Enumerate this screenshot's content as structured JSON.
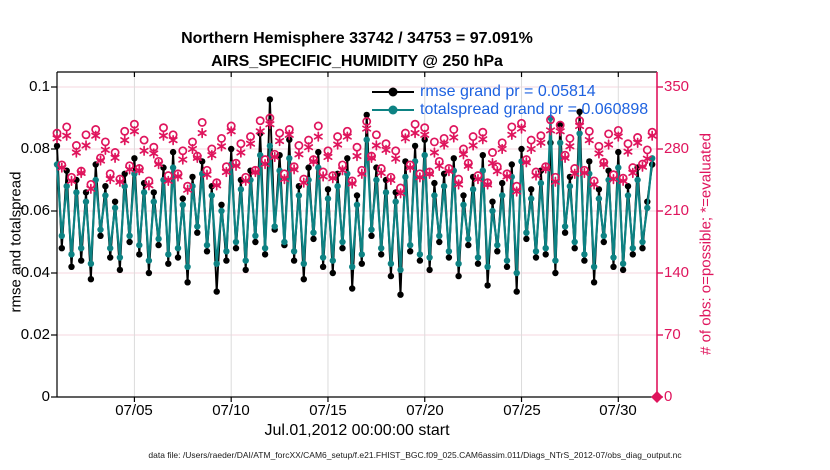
{
  "figure": {
    "title_line1": "Northern Hemisphere 33742 / 34753 = 97.091%",
    "title_line2": "AIRS_SPECIFIC_HUMIDITY @ 250 hPa",
    "footer": "data file: /Users/raeder/DAI/ATM_forcXX/CAM6_setup/f.e21.FHIST_BGC.f09_025.CAM6assim.011/Diags_NTrS_2012-07/obs_diag_output.nc"
  },
  "colors": {
    "rmse_black": "#000000",
    "totalspread_teal": "#0d8283",
    "obs_pink": "#df155d",
    "legend_blue": "#1e62e0",
    "grid_pink": "#f6d7df",
    "grid_gray": "#dcdcdc"
  },
  "chart_data": {
    "type": "line",
    "title": "Northern Hemisphere 33742 / 34753 = 97.091% — AIRS_SPECIFIC_HUMIDITY @ 250 hPa",
    "xlabel": "Jul.01,2012 00:00:00 start",
    "ylabel_left": "rmse and totalspread",
    "ylabel_right": "# of obs: o=possible; *=evaluated",
    "xlim_days": [
      0,
      31
    ],
    "ylim_left": [
      0,
      0.105
    ],
    "ylim_right": [
      0,
      367.5
    ],
    "grid": "on",
    "legend_position": "top-center",
    "points_per_day": 4,
    "xticks": [
      {
        "label": "07/05",
        "day": 4
      },
      {
        "label": "07/10",
        "day": 9
      },
      {
        "label": "07/15",
        "day": 14
      },
      {
        "label": "07/20",
        "day": 19
      },
      {
        "label": "07/25",
        "day": 24
      },
      {
        "label": "07/30",
        "day": 29
      }
    ],
    "yticks_left": [
      "0.1",
      "0.08",
      "0.06",
      "0.04",
      "0.02",
      "0"
    ],
    "yticks_right": [
      "350",
      "280",
      "210",
      "140",
      "70",
      "0"
    ],
    "series": [
      {
        "name": "rmse",
        "legend_label": "rmse grand pr = 0.05814",
        "grand_mean": 0.05814,
        "color": "#000000",
        "values": [
          0.081,
          0.048,
          0.073,
          0.042,
          0.07,
          0.044,
          0.066,
          0.038,
          0.075,
          0.052,
          0.068,
          0.045,
          0.063,
          0.041,
          0.072,
          0.05,
          0.077,
          0.046,
          0.069,
          0.04,
          0.066,
          0.049,
          0.074,
          0.043,
          0.079,
          0.045,
          0.064,
          0.037,
          0.071,
          0.053,
          0.076,
          0.047,
          0.068,
          0.034,
          0.062,
          0.044,
          0.08,
          0.048,
          0.07,
          0.041,
          0.073,
          0.05,
          0.085,
          0.046,
          0.096,
          0.054,
          0.078,
          0.049,
          0.083,
          0.044,
          0.068,
          0.038,
          0.074,
          0.051,
          0.079,
          0.042,
          0.067,
          0.04,
          0.072,
          0.048,
          0.077,
          0.035,
          0.065,
          0.043,
          0.091,
          0.052,
          0.074,
          0.046,
          0.07,
          0.039,
          0.066,
          0.033,
          0.076,
          0.047,
          0.081,
          0.044,
          0.083,
          0.041,
          0.069,
          0.05,
          0.072,
          0.045,
          0.077,
          0.039,
          0.065,
          0.049,
          0.071,
          0.043,
          0.078,
          0.036,
          0.063,
          0.047,
          0.069,
          0.042,
          0.075,
          0.034,
          0.08,
          0.051,
          0.067,
          0.045,
          0.073,
          0.046,
          0.082,
          0.04,
          0.088,
          0.053,
          0.071,
          0.048,
          0.092,
          0.044,
          0.076,
          0.037,
          0.067,
          0.05,
          0.073,
          0.042,
          0.079,
          0.041,
          0.068,
          0.046,
          0.074,
          0.048,
          0.063,
          0.075
        ]
      },
      {
        "name": "totalspread",
        "legend_label": "totalspread grand pr = 0.060898",
        "grand_mean": 0.060898,
        "color": "#0d8283",
        "values": [
          0.075,
          0.052,
          0.068,
          0.046,
          0.066,
          0.048,
          0.063,
          0.043,
          0.07,
          0.054,
          0.065,
          0.048,
          0.061,
          0.045,
          0.068,
          0.052,
          0.072,
          0.049,
          0.066,
          0.044,
          0.063,
          0.051,
          0.07,
          0.046,
          0.074,
          0.048,
          0.062,
          0.042,
          0.068,
          0.055,
          0.072,
          0.049,
          0.065,
          0.043,
          0.06,
          0.047,
          0.075,
          0.05,
          0.067,
          0.044,
          0.07,
          0.052,
          0.078,
          0.048,
          0.081,
          0.055,
          0.073,
          0.05,
          0.077,
          0.047,
          0.065,
          0.043,
          0.07,
          0.053,
          0.074,
          0.045,
          0.064,
          0.044,
          0.068,
          0.05,
          0.072,
          0.042,
          0.062,
          0.046,
          0.083,
          0.054,
          0.07,
          0.048,
          0.066,
          0.043,
          0.063,
          0.041,
          0.071,
          0.049,
          0.076,
          0.046,
          0.078,
          0.045,
          0.065,
          0.052,
          0.068,
          0.047,
          0.073,
          0.043,
          0.062,
          0.051,
          0.067,
          0.045,
          0.073,
          0.042,
          0.06,
          0.049,
          0.065,
          0.044,
          0.071,
          0.04,
          0.076,
          0.053,
          0.064,
          0.047,
          0.069,
          0.048,
          0.09,
          0.044,
          0.082,
          0.055,
          0.068,
          0.05,
          0.085,
          0.046,
          0.072,
          0.042,
          0.064,
          0.052,
          0.07,
          0.045,
          0.074,
          0.043,
          0.065,
          0.048,
          0.07,
          0.05,
          0.061,
          0.077
        ]
      }
    ],
    "obs": {
      "possible_marker": "o",
      "evaluated_marker": "*",
      "possible": [
        298,
        262,
        305,
        248,
        284,
        255,
        296,
        240,
        302,
        270,
        288,
        252,
        276,
        246,
        300,
        261,
        308,
        258,
        290,
        244,
        282,
        266,
        304,
        250,
        296,
        252,
        278,
        238,
        288,
        272,
        310,
        256,
        280,
        242,
        292,
        260,
        306,
        264,
        286,
        248,
        294,
        256,
        312,
        268,
        315,
        274,
        298,
        252,
        302,
        260,
        284,
        246,
        290,
        268,
        306,
        254,
        278,
        250,
        294,
        262,
        300,
        244,
        282,
        256,
        311,
        272,
        296,
        258,
        286,
        248,
        278,
        236,
        298,
        262,
        308,
        252,
        304,
        254,
        288,
        266,
        292,
        258,
        302,
        246,
        280,
        264,
        294,
        250,
        299,
        242,
        276,
        260,
        287,
        252,
        305,
        238,
        309,
        268,
        290,
        254,
        295,
        260,
        313,
        248,
        307,
        273,
        292,
        258,
        312,
        256,
        300,
        244,
        283,
        265,
        297,
        251,
        301,
        247,
        286,
        259,
        293,
        263,
        279,
        299
      ],
      "evaluated": [
        292,
        259,
        295,
        244,
        276,
        253,
        284,
        235,
        295,
        267,
        279,
        246,
        270,
        243,
        290,
        257,
        300,
        256,
        278,
        239,
        275,
        263,
        295,
        244,
        290,
        249,
        268,
        234,
        280,
        270,
        298,
        251,
        273,
        239,
        283,
        254,
        300,
        261,
        276,
        244,
        286,
        254,
        300,
        263,
        308,
        271,
        289,
        246,
        296,
        257,
        274,
        242,
        282,
        266,
        294,
        249,
        271,
        247,
        285,
        256,
        294,
        241,
        272,
        252,
        303,
        270,
        284,
        253,
        279,
        245,
        269,
        230,
        292,
        259,
        298,
        248,
        296,
        252,
        276,
        261,
        285,
        255,
        293,
        240,
        274,
        261,
        284,
        246,
        291,
        240,
        264,
        255,
        280,
        249,
        296,
        232,
        303,
        265,
        280,
        250,
        287,
        258,
        301,
        243,
        300,
        270,
        283,
        252,
        306,
        253,
        290,
        240,
        275,
        263,
        285,
        246,
        294,
        244,
        277,
        253,
        287,
        260,
        269,
        295
      ],
      "final_zero_marker": {
        "day": 31,
        "count": 0,
        "shape": "diamond"
      }
    }
  }
}
